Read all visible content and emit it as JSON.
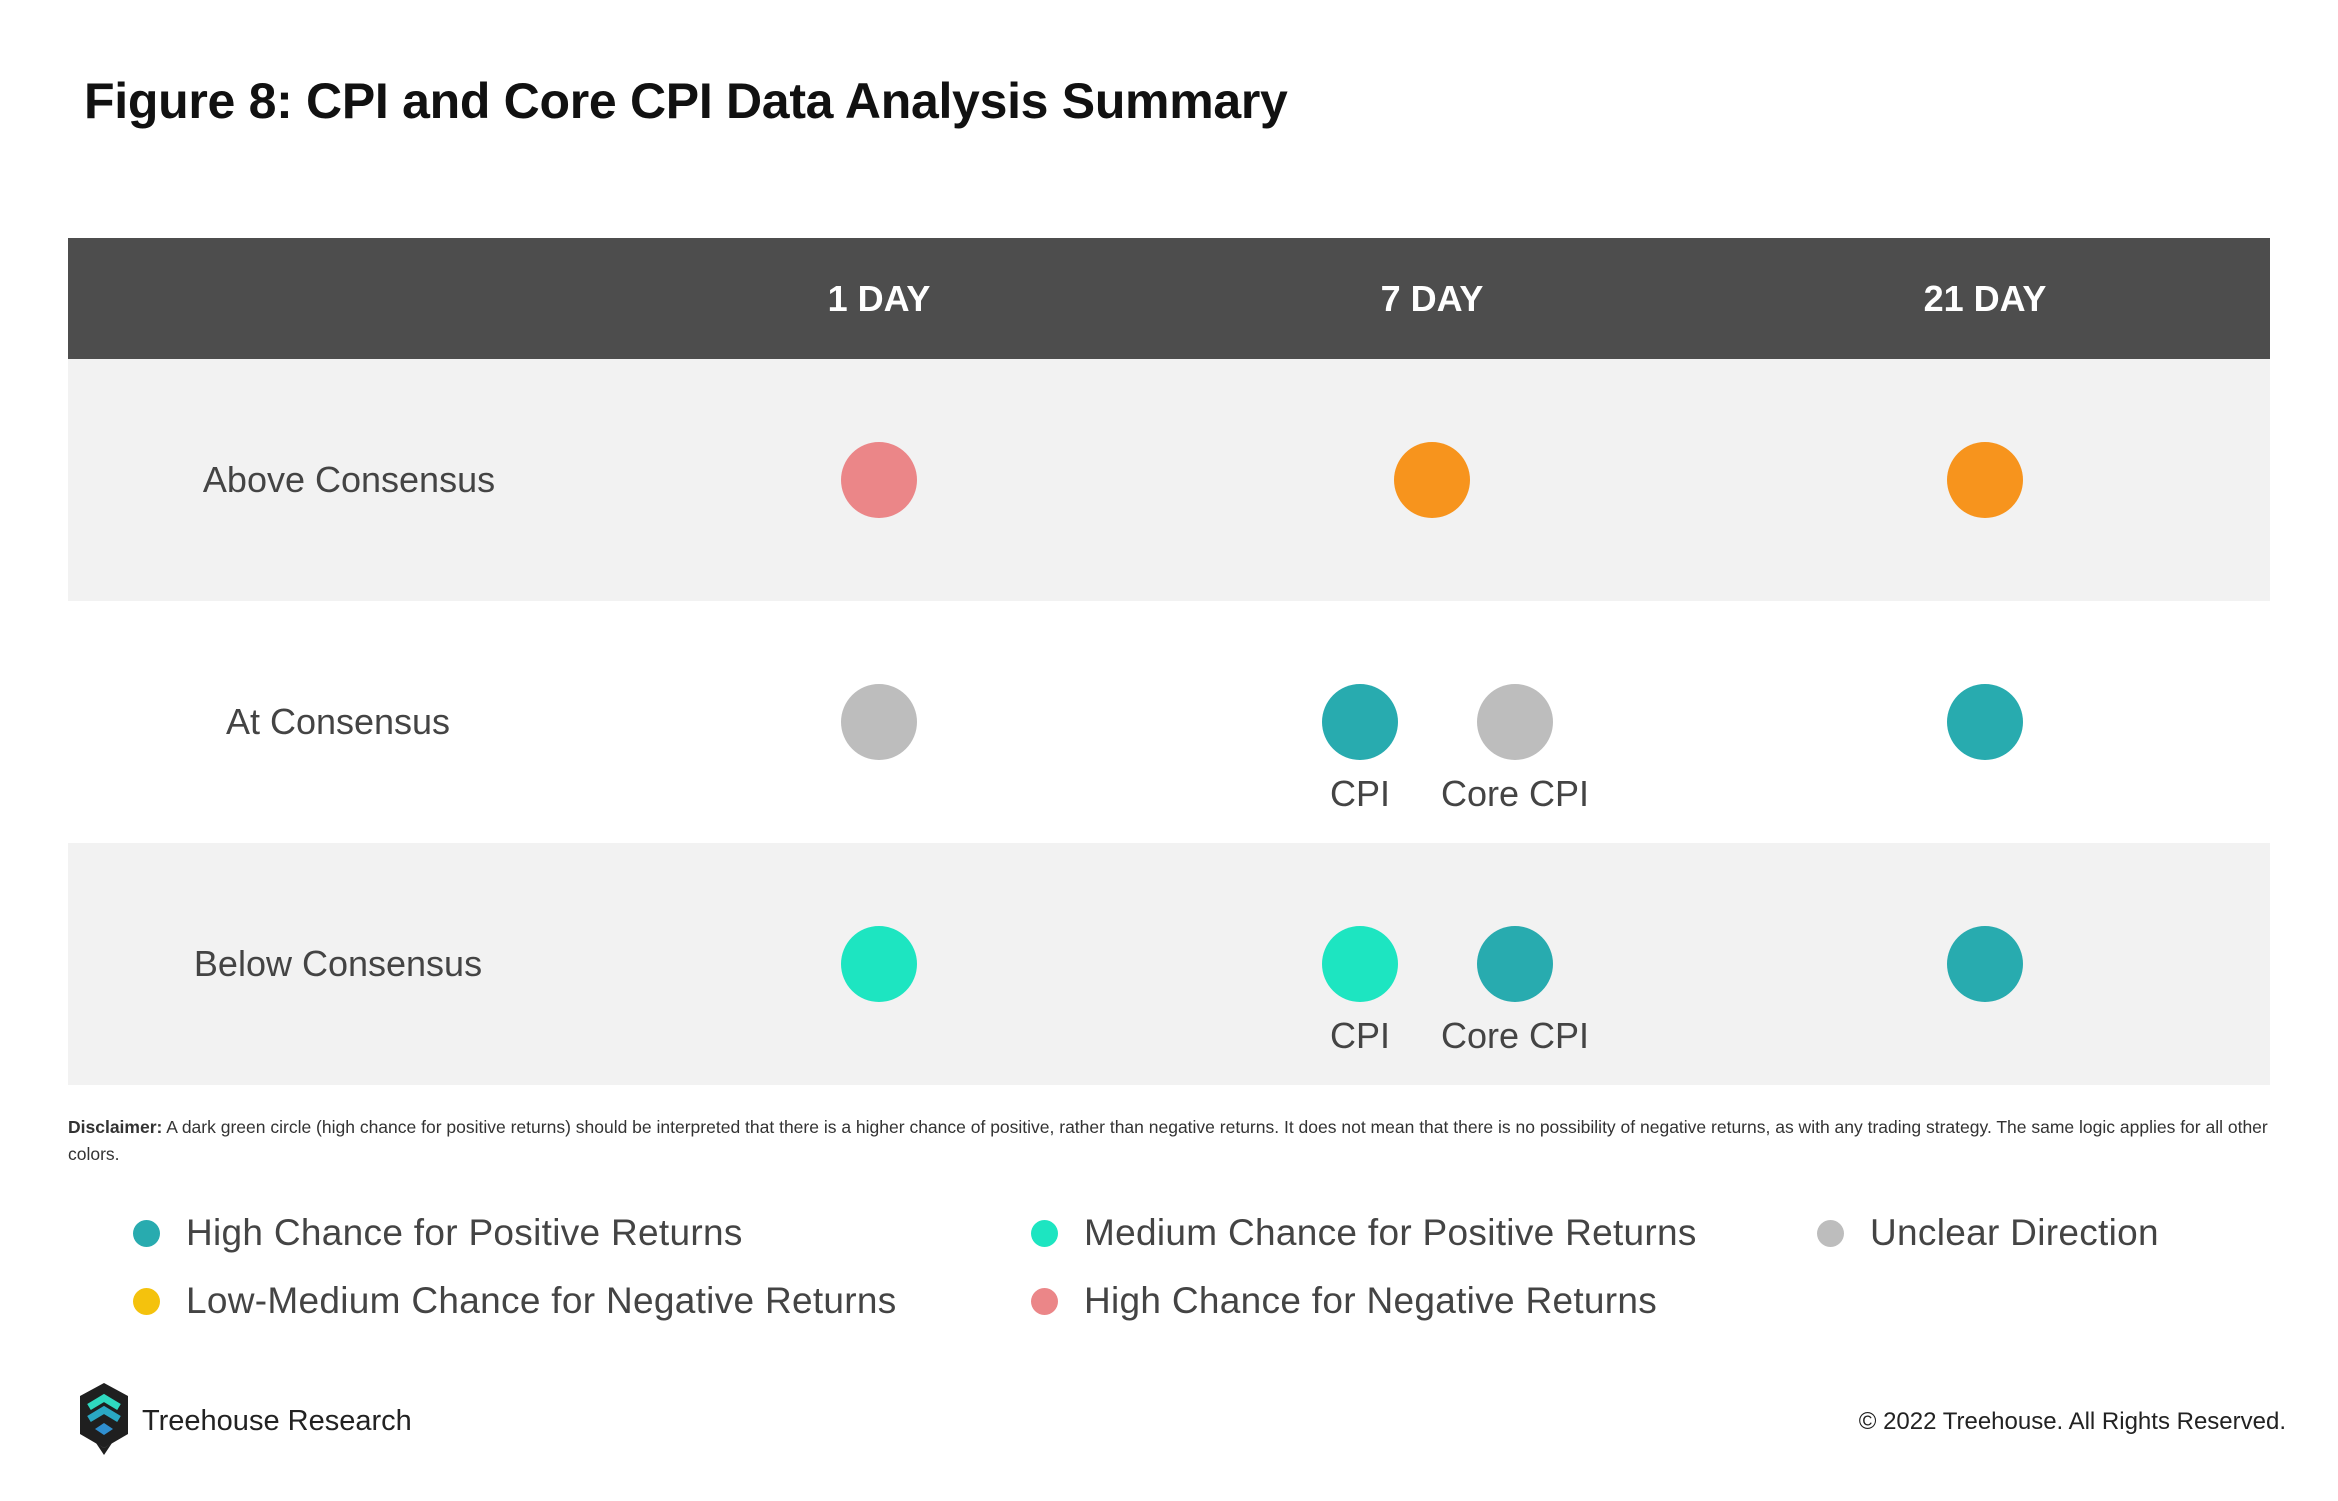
{
  "title": "Figure 8: CPI and Core CPI Data Analysis Summary",
  "colors": {
    "header_bg": "#4d4d4d",
    "row_shade": "#f2f2f2",
    "high_positive": "#28abaf",
    "medium_positive": "#1de5c1",
    "unclear": "#bdbdbd",
    "low_medium_negative": "#f4c20d",
    "high_negative": "#eb8688",
    "orange_dot": "#f7941d"
  },
  "table": {
    "columns": [
      "1 DAY",
      "7 DAY",
      "21 DAY"
    ],
    "rows": [
      {
        "label": "Above Consensus",
        "cells": [
          [
            {
              "color": "#eb8688",
              "status": "High Chance for Negative Returns"
            }
          ],
          [
            {
              "color": "#f7941d",
              "status": "Low-Medium Chance for Negative Returns"
            }
          ],
          [
            {
              "color": "#f7941d",
              "status": "Low-Medium Chance for Negative Returns"
            }
          ]
        ]
      },
      {
        "label": "At Consensus",
        "cells": [
          [
            {
              "color": "#bdbdbd",
              "status": "Unclear Direction"
            }
          ],
          [
            {
              "color": "#28abaf",
              "status": "High Chance for Positive Returns",
              "label": "CPI"
            },
            {
              "color": "#bdbdbd",
              "status": "Unclear Direction",
              "label": "Core CPI"
            }
          ],
          [
            {
              "color": "#28abaf",
              "status": "High Chance for Positive Returns"
            }
          ]
        ]
      },
      {
        "label": "Below Consensus",
        "cells": [
          [
            {
              "color": "#1de5c1",
              "status": "Medium Chance for Positive Returns"
            }
          ],
          [
            {
              "color": "#1de5c1",
              "status": "Medium Chance for Positive Returns",
              "label": "CPI"
            },
            {
              "color": "#28abaf",
              "status": "High Chance for Positive Returns",
              "label": "Core CPI"
            }
          ],
          [
            {
              "color": "#28abaf",
              "status": "High Chance for Positive Returns"
            }
          ]
        ]
      }
    ]
  },
  "disclaimer": {
    "label": "Disclaimer:",
    "text": " A dark green circle (high chance for positive returns) should be interpreted that there is a higher chance of positive, rather than negative returns. It does not mean that there is no possibility of negative returns, as with any trading strategy. The same logic applies for all other colors."
  },
  "legend": [
    {
      "label": "High Chance for Positive Returns",
      "color": "#28abaf"
    },
    {
      "label": "Medium Chance for Positive Returns",
      "color": "#1de5c1"
    },
    {
      "label": "Unclear Direction",
      "color": "#bdbdbd"
    },
    {
      "label": "Low-Medium Chance for Negative Returns",
      "color": "#f4c20d"
    },
    {
      "label": "High Chance for Negative Returns",
      "color": "#eb8688"
    }
  ],
  "footer": {
    "brand": "Treehouse Research",
    "logo_icon": "treehouse-logo-icon",
    "copyright": "© 2022 Treehouse. All Rights Reserved."
  }
}
